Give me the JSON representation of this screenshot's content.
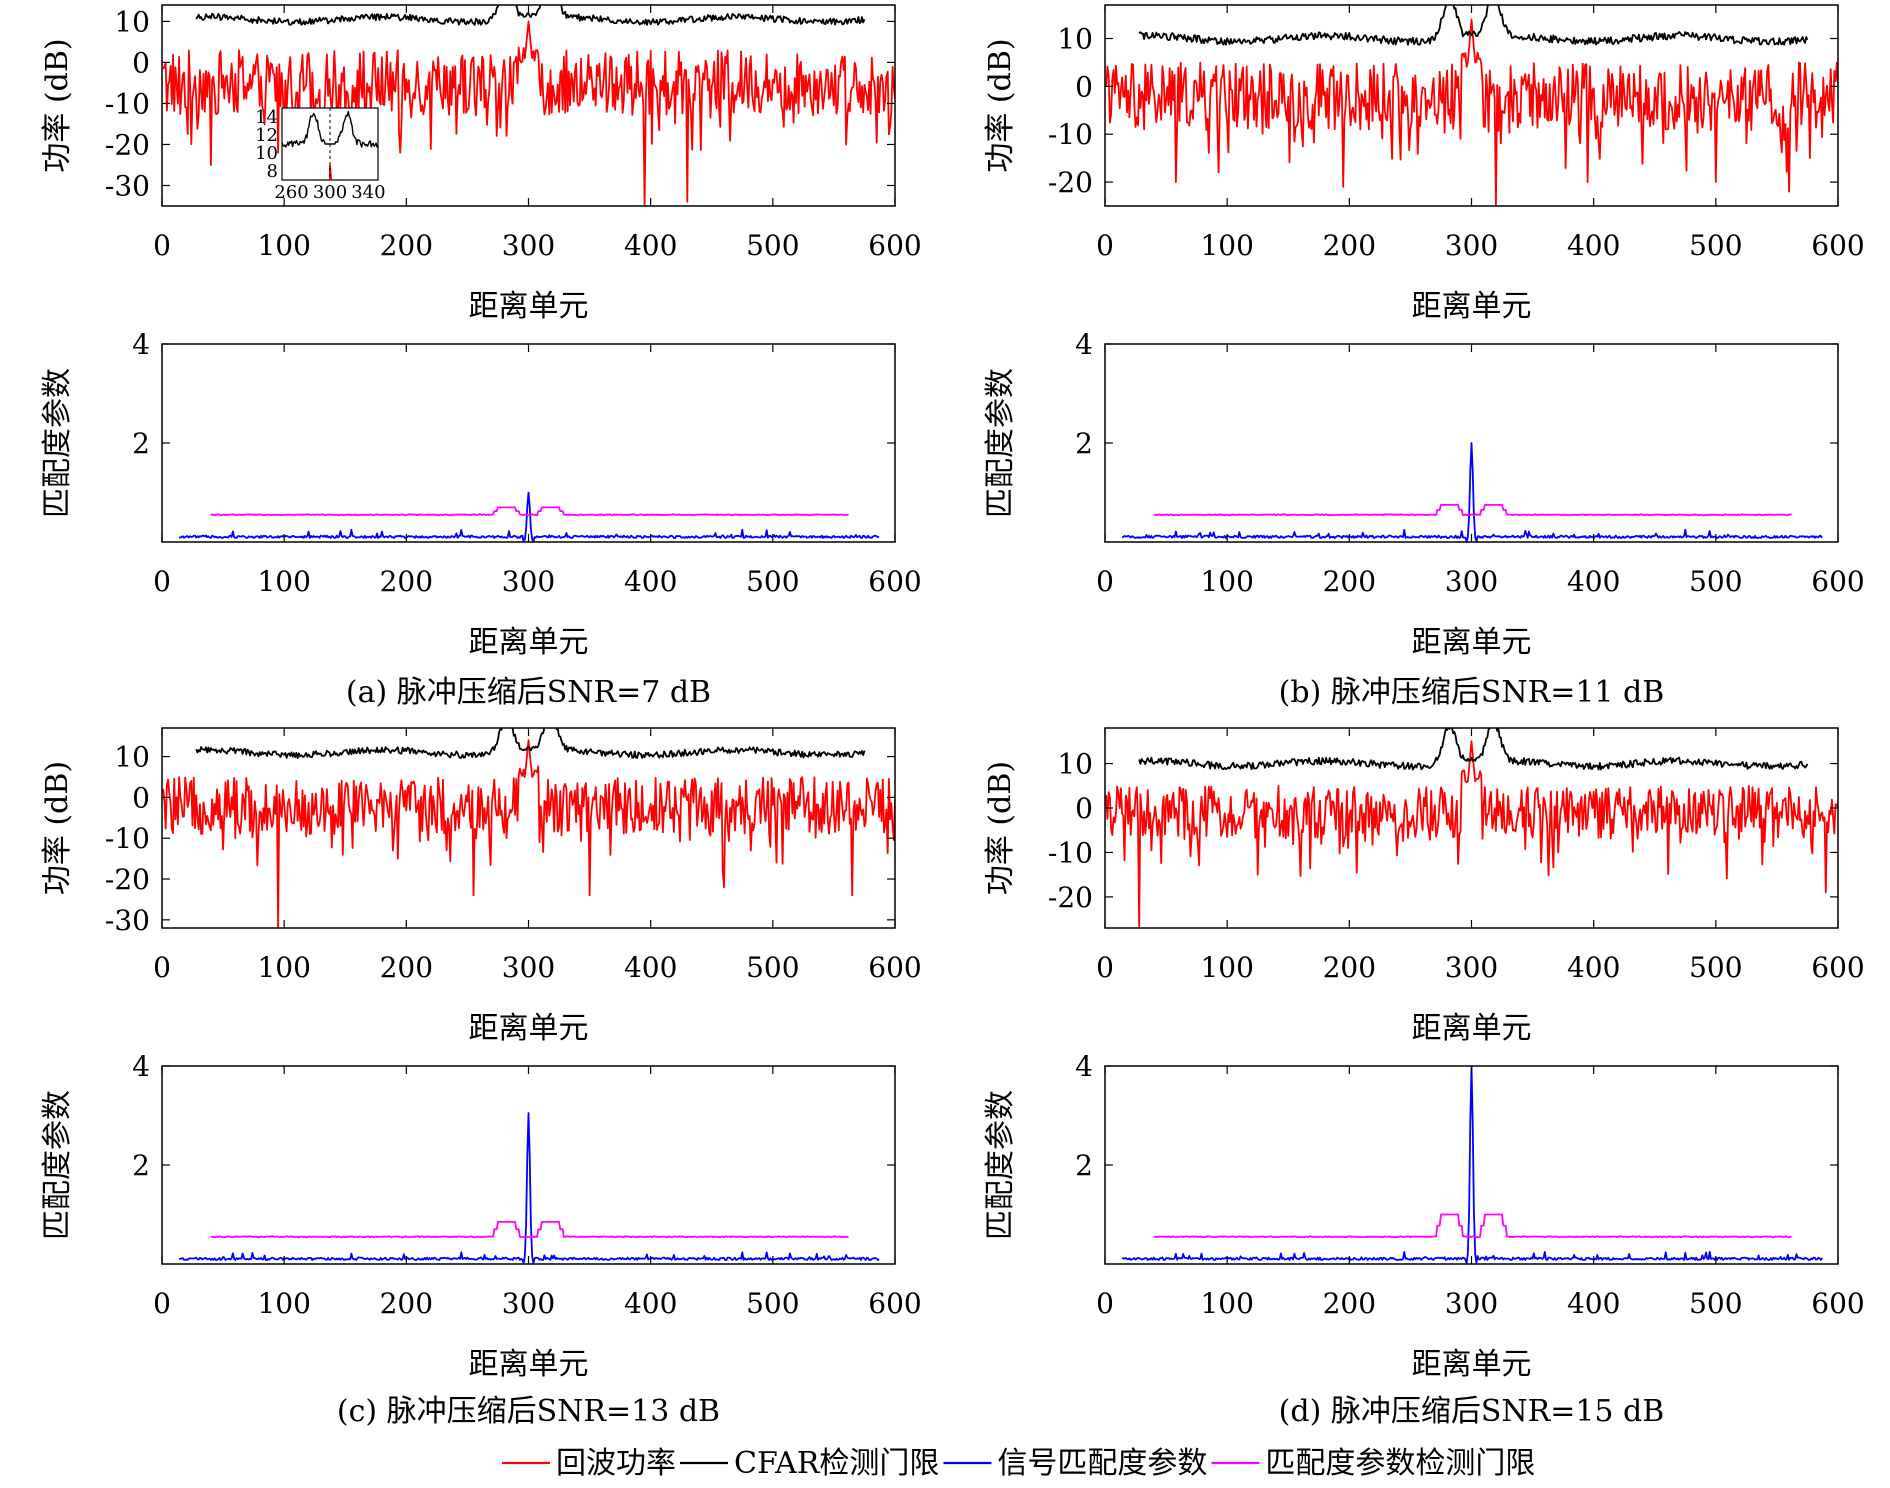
{
  "chart_data": [
    {
      "panel": "a",
      "type": "line",
      "caption": "(a) 脉冲压缩后SNR=7 dB",
      "power": {
        "xlabel": "距离单元",
        "ylabel": "功率 (dB)",
        "xlim": [
          0,
          600
        ],
        "ylim": [
          -35,
          14
        ],
        "xticks": [
          0,
          100,
          200,
          300,
          400,
          500,
          600
        ],
        "yticks": [
          10,
          0,
          -10,
          -20,
          -30
        ],
        "threshold_level": 10.5,
        "target_peak": 10,
        "noise_mean": -5,
        "noise_spread": 8,
        "noise_min": -35,
        "deep_dips": [
          [
            40,
            -25
          ],
          [
            95,
            -22
          ],
          [
            130,
            -24
          ],
          [
            195,
            -22
          ],
          [
            395,
            -35
          ],
          [
            430,
            -34
          ],
          [
            560,
            -20
          ]
        ],
        "inset": {
          "xticks": [
            260,
            300,
            340
          ],
          "yticks": [
            14,
            12,
            10,
            8
          ],
          "xlim": [
            250,
            350
          ],
          "ylim": [
            7,
            15
          ]
        }
      },
      "match": {
        "xlabel": "距离单元",
        "ylabel": "匹配度参数",
        "xlim": [
          0,
          600
        ],
        "ylim": [
          0,
          4
        ],
        "xticks": [
          0,
          100,
          200,
          300,
          400,
          500,
          600
        ],
        "yticks": [
          4,
          2
        ],
        "peak": 1.0,
        "threshold_level": 0.55,
        "threshold_bump": 0.7
      }
    },
    {
      "panel": "b",
      "type": "line",
      "caption": "(b) 脉冲压缩后SNR=11 dB",
      "power": {
        "xlabel": "距离单元",
        "ylabel": "功率 (dB)",
        "xlim": [
          0,
          600
        ],
        "ylim": [
          -25,
          17
        ],
        "xticks": [
          0,
          100,
          200,
          300,
          400,
          500,
          600
        ],
        "yticks": [
          10,
          0,
          -10,
          -20
        ],
        "threshold_level": 10,
        "target_peak": 14,
        "noise_mean": -2,
        "noise_spread": 7,
        "noise_min": -25,
        "deep_dips": [
          [
            58,
            -20
          ],
          [
            195,
            -21
          ],
          [
            320,
            -25
          ],
          [
            395,
            -20
          ],
          [
            500,
            -20
          ],
          [
            560,
            -22
          ]
        ]
      },
      "match": {
        "xlabel": "距离单元",
        "ylabel": "匹配度参数",
        "xlim": [
          0,
          600
        ],
        "ylim": [
          0,
          4
        ],
        "xticks": [
          0,
          100,
          200,
          300,
          400,
          500,
          600
        ],
        "yticks": [
          4,
          2
        ],
        "peak": 2.0,
        "threshold_level": 0.55,
        "threshold_bump": 0.75
      }
    },
    {
      "panel": "c",
      "type": "line",
      "caption": "(c) 脉冲压缩后SNR=13 dB",
      "power": {
        "xlabel": "距离单元",
        "ylabel": "功率 (dB)",
        "xlim": [
          0,
          600
        ],
        "ylim": [
          -32,
          17
        ],
        "xticks": [
          0,
          100,
          200,
          300,
          400,
          500,
          600
        ],
        "yticks": [
          10,
          0,
          -10,
          -20,
          -30
        ],
        "threshold_level": 11,
        "target_peak": 14,
        "noise_mean": -2,
        "noise_spread": 7,
        "noise_min": -32,
        "deep_dips": [
          [
            95,
            -32
          ],
          [
            255,
            -24
          ],
          [
            350,
            -24
          ],
          [
            460,
            -22
          ],
          [
            565,
            -24
          ]
        ]
      },
      "match": {
        "xlabel": "距离单元",
        "ylabel": "匹配度参数",
        "xlim": [
          0,
          600
        ],
        "ylim": [
          0,
          4
        ],
        "xticks": [
          0,
          100,
          200,
          300,
          400,
          500,
          600
        ],
        "yticks": [
          4,
          2
        ],
        "peak": 3.05,
        "threshold_level": 0.55,
        "threshold_bump": 0.85
      }
    },
    {
      "panel": "d",
      "type": "line",
      "caption": "(d) 脉冲压缩后SNR=15 dB",
      "power": {
        "xlabel": "距离单元",
        "ylabel": "功率 (dB)",
        "xlim": [
          0,
          600
        ],
        "ylim": [
          -27,
          18
        ],
        "xticks": [
          0,
          100,
          200,
          300,
          400,
          500,
          600
        ],
        "yticks": [
          10,
          0,
          -10,
          -20
        ],
        "threshold_level": 10,
        "target_peak": 15,
        "noise_mean": -1,
        "noise_spread": 6,
        "noise_min": -27,
        "deep_dips": [
          [
            28,
            -27
          ],
          [
            125,
            -15
          ],
          [
            590,
            -19
          ]
        ]
      },
      "match": {
        "xlabel": "距离单元",
        "ylabel": "匹配度参数",
        "xlim": [
          0,
          600
        ],
        "ylim": [
          0,
          4
        ],
        "xticks": [
          0,
          100,
          200,
          300,
          400,
          500,
          600
        ],
        "yticks": [
          4,
          2
        ],
        "peak": 4.0,
        "threshold_level": 0.55,
        "threshold_bump": 1.0
      }
    }
  ],
  "legend": [
    {
      "name": "回波功率",
      "color": "#ff0000"
    },
    {
      "name": "CFAR检测门限",
      "color": "#000000"
    },
    {
      "name": "信号匹配度参数",
      "color": "#0000ff"
    },
    {
      "name": "匹配度参数检测门限",
      "color": "#ff00ff"
    }
  ]
}
